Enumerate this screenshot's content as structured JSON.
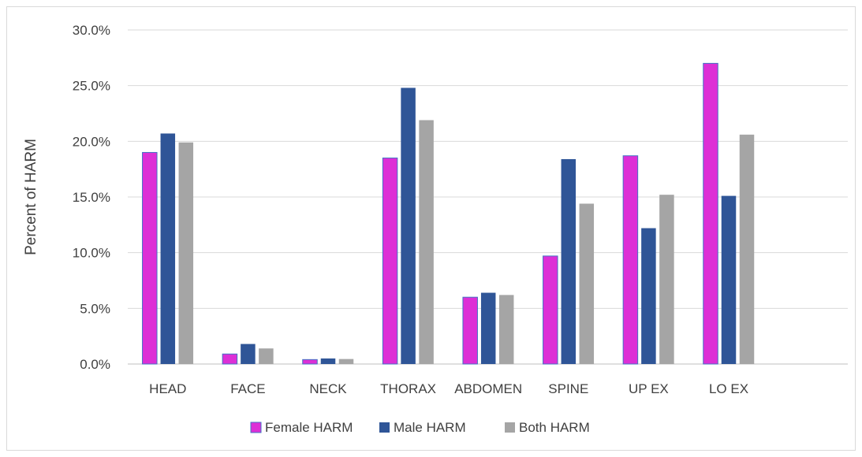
{
  "chart_data": {
    "type": "bar",
    "title": "",
    "xlabel": "",
    "ylabel": "Percent of HARM",
    "ylim": [
      0,
      30
    ],
    "yticks": [
      "0.0%",
      "5.0%",
      "10.0%",
      "15.0%",
      "20.0%",
      "25.0%",
      "30.0%"
    ],
    "grid": true,
    "legend_position": "bottom",
    "categories": [
      "HEAD",
      "FACE",
      "NECK",
      "THORAX",
      "ABDOMEN",
      "SPINE",
      "UP EX",
      "LO EX"
    ],
    "series": [
      {
        "name": "Female HARM",
        "color": "#dd2fd6",
        "values": [
          19.0,
          0.9,
          0.4,
          18.5,
          6.0,
          9.7,
          18.7,
          27.0
        ]
      },
      {
        "name": "Male HARM",
        "color": "#2f5597",
        "values": [
          20.7,
          1.8,
          0.5,
          24.8,
          6.4,
          18.4,
          12.2,
          15.1
        ]
      },
      {
        "name": "Both HARM",
        "color": "#a5a5a5",
        "values": [
          19.9,
          1.4,
          0.45,
          21.9,
          6.2,
          14.4,
          15.2,
          20.6
        ]
      }
    ]
  }
}
